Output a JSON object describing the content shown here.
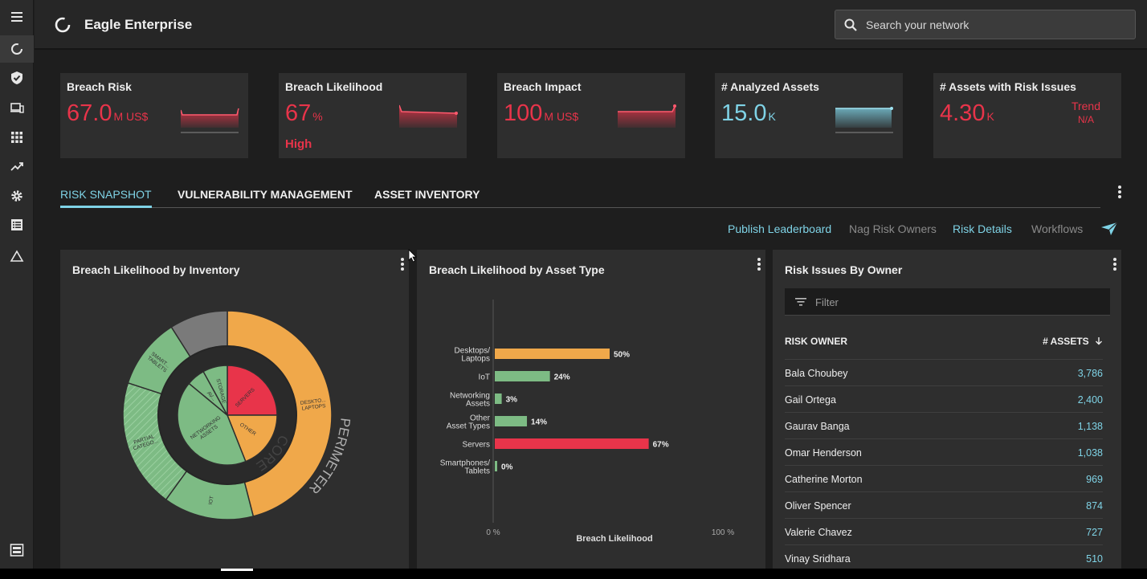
{
  "app": {
    "title": "Eagle Enterprise"
  },
  "search": {
    "placeholder": "Search your network"
  },
  "nav": {
    "icons": [
      "menu-icon",
      "dashboard-ring-icon",
      "shield-icon",
      "devices-icon",
      "apps-grid-icon",
      "trending-icon",
      "gear-icon",
      "list-icon",
      "warning-triangle-icon",
      "panel-toggle-icon"
    ]
  },
  "kpis": [
    {
      "title": "Breach Risk",
      "value": "67.0",
      "unit": "M US$",
      "sub": ""
    },
    {
      "title": "Breach Likelihood",
      "value": "67",
      "unit": "%",
      "sub": "High"
    },
    {
      "title": "Breach Impact",
      "value": "100",
      "unit": "M US$",
      "sub": ""
    },
    {
      "title": "# Analyzed Assets",
      "value": "15.0",
      "unit": "K",
      "sub": ""
    },
    {
      "title": "# Assets with Risk Issues",
      "value": "4.30",
      "unit": "K",
      "trend_label": "Trend",
      "trend_value": "N/A"
    }
  ],
  "tabs": [
    "RISK SNAPSHOT",
    "VULNERABILITY MANAGEMENT",
    "ASSET INVENTORY"
  ],
  "actions": [
    {
      "label": "Publish Leaderboard",
      "enabled": true
    },
    {
      "label": "Nag Risk Owners",
      "enabled": false
    },
    {
      "label": "Risk Details",
      "enabled": true
    },
    {
      "label": "Workflows",
      "enabled": false
    }
  ],
  "panels": {
    "inventory_title": "Breach Likelihood by Inventory",
    "assettype_title": "Breach Likelihood by Asset Type",
    "owners_title": "Risk Issues By Owner"
  },
  "owners": {
    "filter_placeholder": "Filter",
    "col_owner": "RISK OWNER",
    "col_assets": "# ASSETS",
    "rows": [
      {
        "name": "Bala Choubey",
        "count": "3,786"
      },
      {
        "name": "Gail Ortega",
        "count": "2,400"
      },
      {
        "name": "Gaurav Banga",
        "count": "1,138"
      },
      {
        "name": "Omar Henderson",
        "count": "1,038"
      },
      {
        "name": "Catherine Morton",
        "count": "969"
      },
      {
        "name": "Oliver Spencer",
        "count": "874"
      },
      {
        "name": "Valerie Chavez",
        "count": "727"
      },
      {
        "name": "Vinay Sridhara",
        "count": "510"
      }
    ]
  },
  "colors": {
    "accent": "#7fd3e6",
    "risk_red": "#e8344a",
    "orange": "#f0a84a",
    "green": "#7dbb84",
    "gray": "#7a7a7a"
  },
  "chart_data": [
    {
      "type": "pie",
      "title": "Breach Likelihood by Inventory",
      "ring_labels": [
        "CORE",
        "PERIMETER"
      ],
      "outer": [
        {
          "label": "DESKTO... LAPTOPS",
          "value": 46,
          "color": "#f0a84a"
        },
        {
          "label": "IOT",
          "value": 14,
          "color": "#7dbb84"
        },
        {
          "label": "PARTIAL CATEGO...",
          "value": 20,
          "color": "#7dbb84",
          "hatched": true
        },
        {
          "label": "SMART... TABLETS",
          "value": 11,
          "color": "#7dbb84"
        },
        {
          "label": "",
          "value": 9,
          "color": "#7a7a7a"
        }
      ],
      "inner": [
        {
          "label": "SERVERS",
          "value": 25,
          "color": "#e8344a"
        },
        {
          "label": "OTHER",
          "value": 19,
          "color": "#f0a84a"
        },
        {
          "label": "NETWORKING ASSETS",
          "value": 42,
          "color": "#7dbb84"
        },
        {
          "label": "AV...",
          "value": 6,
          "color": "#7dbb84"
        },
        {
          "label": "STORAGE",
          "value": 8,
          "color": "#7dbb84"
        }
      ]
    },
    {
      "type": "bar",
      "orientation": "horizontal",
      "title": "Breach Likelihood by Asset Type",
      "xlabel": "Breach Likelihood",
      "xlim": [
        0,
        100
      ],
      "x_ticks": [
        "0 %",
        "100 %"
      ],
      "categories": [
        [
          "Desktops/",
          "Laptops"
        ],
        [
          "IoT"
        ],
        [
          "Networking",
          "Assets"
        ],
        [
          "Other",
          "Asset Types"
        ],
        [
          "Servers"
        ],
        [
          "Smartphones/",
          "Tablets"
        ]
      ],
      "values": [
        50,
        24,
        3,
        14,
        67,
        0
      ],
      "value_labels": [
        "50%",
        "24%",
        "3%",
        "14%",
        "67%",
        "0%"
      ],
      "bar_colors": [
        "#f0a84a",
        "#7dbb84",
        "#7dbb84",
        "#7dbb84",
        "#e8344a",
        "#7dbb84"
      ]
    }
  ]
}
